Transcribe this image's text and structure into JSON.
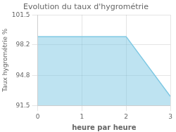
{
  "chart_data": {
    "type": "area",
    "title": "Evolution du taux d'hygrométrie",
    "xlabel": "heure par heure",
    "ylabel": "Taux hygrométrie %",
    "x": [
      0,
      2,
      3
    ],
    "values": [
      99.1,
      99.1,
      92.5
    ],
    "color": "#7ec8e3",
    "xlim": [
      0,
      3
    ],
    "ylim": [
      91.5,
      101.5
    ],
    "xticks": [
      0,
      1,
      2,
      3
    ],
    "yticks": [
      91.5,
      94.8,
      98.2,
      101.5
    ],
    "grid": true
  }
}
